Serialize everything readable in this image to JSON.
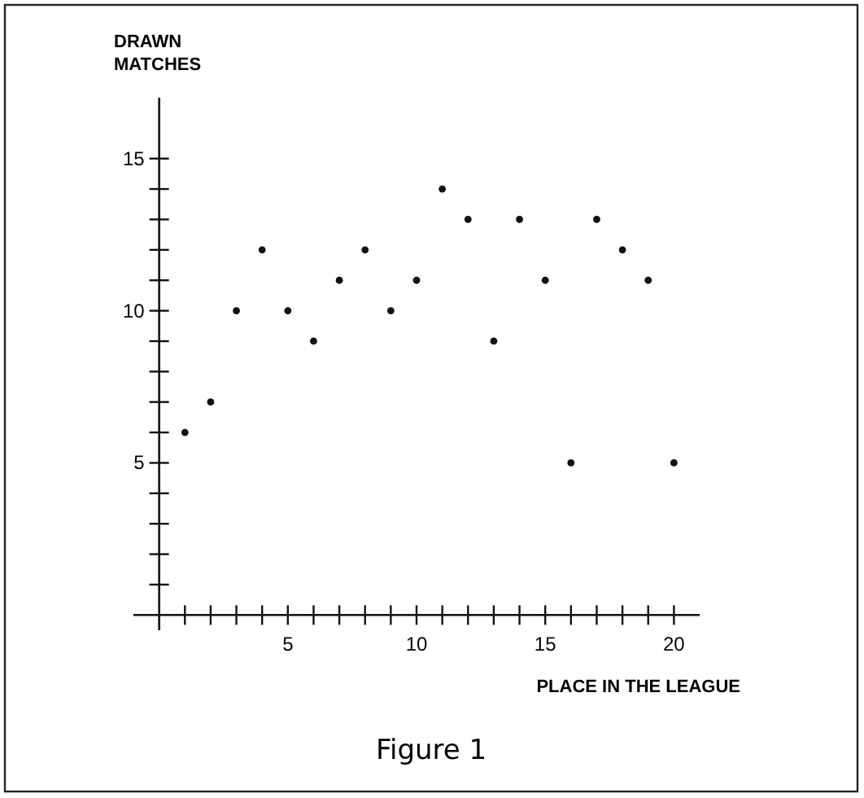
{
  "chart_data": {
    "type": "scatter",
    "ylabel": "DRAWN\nMATCHES",
    "xlabel": "PLACE IN THE LEAGUE",
    "annotations": [
      "Figure 1"
    ],
    "x": [
      1,
      2,
      3,
      4,
      5,
      6,
      7,
      8,
      9,
      10,
      11,
      12,
      13,
      14,
      15,
      16,
      17,
      18,
      19,
      20
    ],
    "values": [
      6,
      7,
      10,
      12,
      10,
      9,
      11,
      12,
      10,
      11,
      14,
      13,
      9,
      13,
      11,
      5,
      13,
      12,
      11,
      5
    ],
    "color": "#111111",
    "marker": "circle",
    "grid": false,
    "xlim": [
      -1,
      21
    ],
    "ylim": [
      -0.5,
      17
    ],
    "xticks": [
      {
        "value": 1,
        "label": null
      },
      {
        "value": 2,
        "label": null
      },
      {
        "value": 3,
        "label": null
      },
      {
        "value": 4,
        "label": null
      },
      5,
      {
        "value": 6,
        "label": null
      },
      {
        "value": 7,
        "label": null
      },
      {
        "value": 8,
        "label": null
      },
      {
        "value": 9,
        "label": null
      },
      10,
      {
        "value": 11,
        "label": null
      },
      {
        "value": 12,
        "label": null
      },
      {
        "value": 13,
        "label": null
      },
      {
        "value": 14,
        "label": null
      },
      15,
      {
        "value": 16,
        "label": null
      },
      {
        "value": 17,
        "label": null
      },
      {
        "value": 18,
        "label": null
      },
      {
        "value": 19,
        "label": null
      },
      20
    ],
    "yticks": [
      {
        "value": 1,
        "label": null
      },
      {
        "value": 2,
        "label": null
      },
      {
        "value": 3,
        "label": null
      },
      {
        "value": 4,
        "label": null
      },
      5,
      {
        "value": 6,
        "label": null
      },
      {
        "value": 7,
        "label": null
      },
      {
        "value": 8,
        "label": null
      },
      {
        "value": 9,
        "label": null
      },
      10,
      {
        "value": 11,
        "label": null
      },
      {
        "value": 12,
        "label": null
      },
      {
        "value": 13,
        "label": null
      },
      {
        "value": 14,
        "label": null
      },
      15
    ]
  }
}
